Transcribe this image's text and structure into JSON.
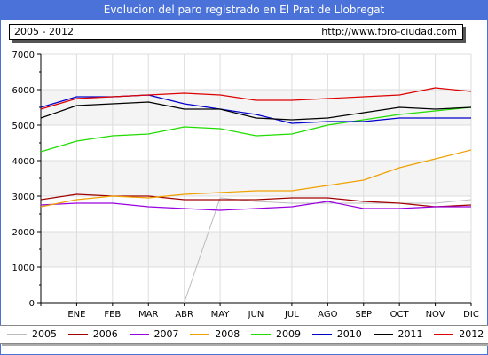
{
  "window": {
    "title": "Evolucion del paro registrado en El Prat de Llobregat",
    "range_label": "2005 - 2012",
    "url_label": "http://www.foro-ciudad.com"
  },
  "chart_data": {
    "type": "line",
    "title": "Evolucion del paro registrado en El Prat de Llobregat",
    "xlabel": "",
    "ylabel": "",
    "categories": [
      "",
      "ENE",
      "FEB",
      "MAR",
      "ABR",
      "MAY",
      "JUN",
      "JUL",
      "AGO",
      "SEP",
      "OCT",
      "NOV",
      "DIC"
    ],
    "ylim": [
      0,
      7000
    ],
    "yticks": [
      0,
      1000,
      2000,
      3000,
      4000,
      5000,
      6000,
      7000
    ],
    "grid": true,
    "legend_position": "bottom",
    "series": [
      {
        "name": "2005",
        "color": "#bbbbbb",
        "values": [
          null,
          null,
          null,
          null,
          0,
          2950,
          2850,
          2800,
          2800,
          2800,
          2800,
          2800,
          2900
        ]
      },
      {
        "name": "2006",
        "color": "#a00000",
        "values": [
          2900,
          3050,
          3000,
          3000,
          2900,
          2900,
          2900,
          2950,
          2950,
          2850,
          2800,
          2700,
          2750
        ]
      },
      {
        "name": "2007",
        "color": "#9a00e0",
        "values": [
          2750,
          2800,
          2800,
          2700,
          2650,
          2600,
          2650,
          2700,
          2850,
          2650,
          2650,
          2700,
          2700
        ]
      },
      {
        "name": "2008",
        "color": "#f0a000",
        "values": [
          2700,
          2900,
          3000,
          2950,
          3050,
          3100,
          3150,
          3150,
          3300,
          3450,
          3800,
          4050,
          4300
        ]
      },
      {
        "name": "2009",
        "color": "#20dd00",
        "values": [
          4250,
          4550,
          4700,
          4750,
          4950,
          4900,
          4700,
          4750,
          5000,
          5150,
          5300,
          5400,
          5500
        ]
      },
      {
        "name": "2010",
        "color": "#0000cc",
        "values": [
          5500,
          5800,
          5800,
          5850,
          5600,
          5450,
          5300,
          5050,
          5100,
          5100,
          5200,
          5200,
          5200
        ]
      },
      {
        "name": "2011",
        "color": "#000000",
        "values": [
          5200,
          5550,
          5600,
          5650,
          5450,
          5450,
          5200,
          5150,
          5200,
          5350,
          5500,
          5450,
          5500
        ]
      },
      {
        "name": "2012",
        "color": "#dd0000",
        "values": [
          5450,
          5750,
          5800,
          5850,
          5900,
          5850,
          5700,
          5700,
          5750,
          5800,
          5850,
          6050,
          5950
        ]
      }
    ]
  }
}
